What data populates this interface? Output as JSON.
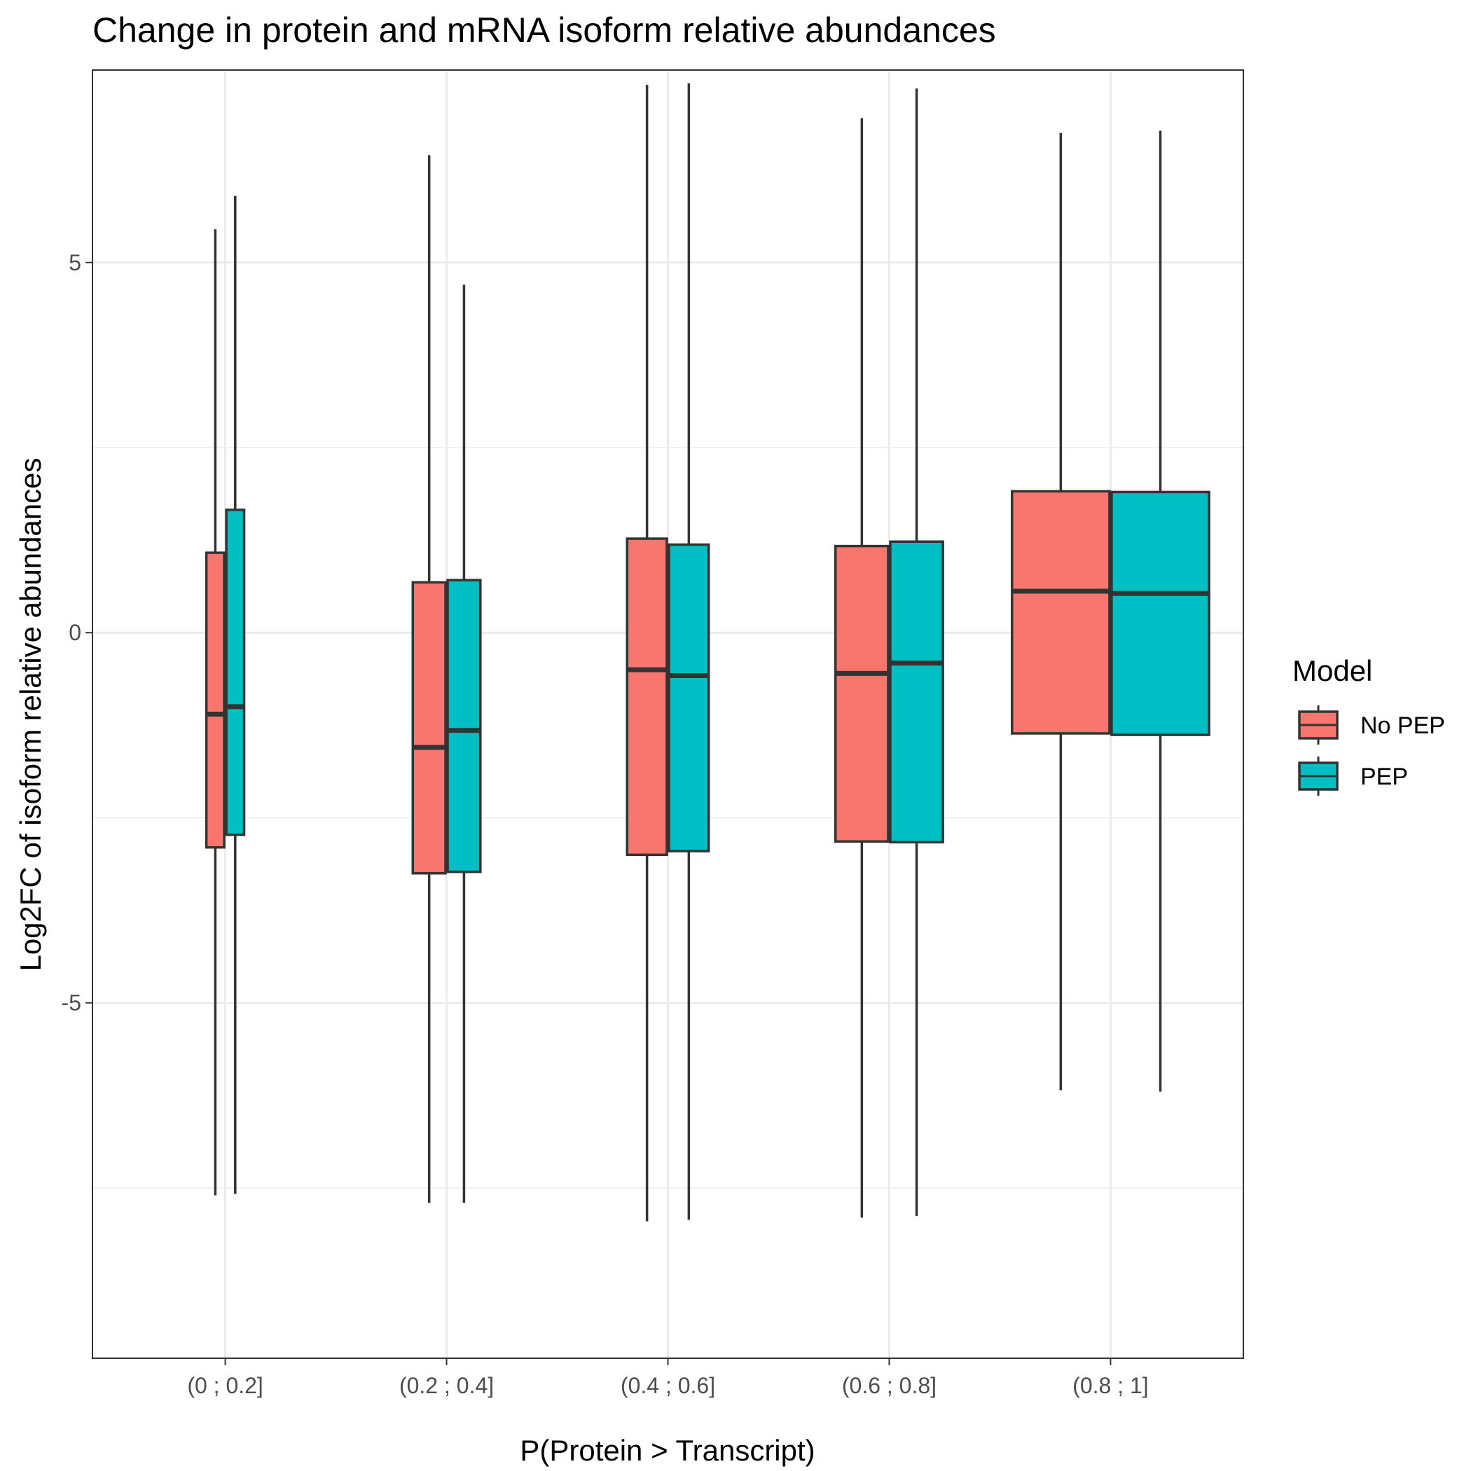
{
  "chart_data": {
    "type": "boxplot",
    "title": "Change in protein and mRNA isoform relative abundances",
    "xlabel": "P(Protein > Transcript)",
    "ylabel": "Log2FC of isoform relative abundances",
    "categories": [
      "(0 ; 0.2]",
      "(0.2 ; 0.4]",
      "(0.4 ; 0.6]",
      "(0.6 ; 0.8]",
      "(0.8 ; 1]"
    ],
    "ylim": [
      -9.8,
      7.6
    ],
    "yticks": [
      {
        "value": 5,
        "label": "5"
      },
      {
        "value": 0,
        "label": "0"
      },
      {
        "value": -5,
        "label": "-5"
      }
    ],
    "minor_gridlines": [
      -7.5,
      -2.5,
      2.5
    ],
    "grid": true,
    "legend": {
      "title": "Model",
      "position": "right",
      "entries": [
        {
          "label": "No PEP",
          "color": "#F8766D"
        },
        {
          "label": "PEP",
          "color": "#00BFC4"
        }
      ]
    },
    "series": [
      {
        "name": "No PEP",
        "color": "#F8766D",
        "boxes": [
          {
            "category": "(0 ; 0.2]",
            "whisker_low": -7.6,
            "q1": -2.9,
            "median": -1.1,
            "q3": 1.08,
            "whisker_high": 5.45,
            "width_rel": 0.2
          },
          {
            "category": "(0.2 ; 0.4]",
            "whisker_low": -7.7,
            "q1": -3.25,
            "median": -1.55,
            "q3": 0.68,
            "whisker_high": 6.45,
            "width_rel": 0.35
          },
          {
            "category": "(0.4 ; 0.6]",
            "whisker_low": -7.95,
            "q1": -3.0,
            "median": -0.5,
            "q3": 1.27,
            "whisker_high": 7.4,
            "width_rel": 0.42
          },
          {
            "category": "(0.6 ; 0.8]",
            "whisker_low": -7.9,
            "q1": -2.82,
            "median": -0.55,
            "q3": 1.17,
            "whisker_high": 6.95,
            "width_rel": 0.55
          },
          {
            "category": "(0.8 ; 1]",
            "whisker_low": -6.18,
            "q1": -1.36,
            "median": 0.56,
            "q3": 1.91,
            "whisker_high": 6.75,
            "width_rel": 1.0
          }
        ]
      },
      {
        "name": "PEP",
        "color": "#00BFC4",
        "boxes": [
          {
            "category": "(0 ; 0.2]",
            "whisker_low": -7.58,
            "q1": -2.73,
            "median": -1.0,
            "q3": 1.66,
            "whisker_high": 5.9,
            "width_rel": 0.25
          },
          {
            "category": "(0.2 ; 0.4]",
            "whisker_low": -7.7,
            "q1": -3.23,
            "median": -1.32,
            "q3": 0.71,
            "whisker_high": 4.7,
            "width_rel": 0.35
          },
          {
            "category": "(0.4 ; 0.6]",
            "whisker_low": -7.93,
            "q1": -2.95,
            "median": -0.58,
            "q3": 1.19,
            "whisker_high": 7.42,
            "width_rel": 0.42
          },
          {
            "category": "(0.6 ; 0.8]",
            "whisker_low": -7.88,
            "q1": -2.83,
            "median": -0.41,
            "q3": 1.23,
            "whisker_high": 7.35,
            "width_rel": 0.55
          },
          {
            "category": "(0.8 ; 1]",
            "whisker_low": -6.2,
            "q1": -1.38,
            "median": 0.53,
            "q3": 1.9,
            "whisker_high": 6.78,
            "width_rel": 1.0
          }
        ]
      }
    ]
  }
}
